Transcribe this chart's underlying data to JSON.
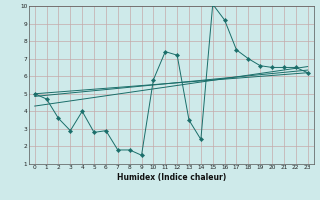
{
  "xlabel": "Humidex (Indice chaleur)",
  "xlim": [
    -0.5,
    23.5
  ],
  "ylim": [
    1,
    10
  ],
  "xticks": [
    0,
    1,
    2,
    3,
    4,
    5,
    6,
    7,
    8,
    9,
    10,
    11,
    12,
    13,
    14,
    15,
    16,
    17,
    18,
    19,
    20,
    21,
    22,
    23
  ],
  "yticks": [
    1,
    2,
    3,
    4,
    5,
    6,
    7,
    8,
    9,
    10
  ],
  "bg_color": "#ceeaea",
  "grid_color": "#c4aaaa",
  "line_color": "#1a6e6a",
  "main_x": [
    0,
    1,
    2,
    3,
    4,
    5,
    6,
    7,
    8,
    9,
    10,
    11,
    12,
    13,
    14,
    15,
    16,
    17,
    18,
    19,
    20,
    21,
    22,
    23
  ],
  "main_y": [
    5.0,
    4.7,
    3.6,
    2.9,
    4.0,
    2.8,
    2.9,
    1.8,
    1.8,
    1.5,
    5.8,
    7.4,
    7.2,
    3.5,
    2.4,
    10.1,
    9.2,
    7.5,
    7.0,
    6.6,
    6.5,
    6.5,
    6.5,
    6.2
  ],
  "line1_x": [
    0,
    23
  ],
  "line1_y": [
    4.3,
    6.55
  ],
  "line2_x": [
    0,
    23
  ],
  "line2_y": [
    4.85,
    6.35
  ],
  "line3_x": [
    0,
    23
  ],
  "line3_y": [
    5.0,
    6.2
  ]
}
